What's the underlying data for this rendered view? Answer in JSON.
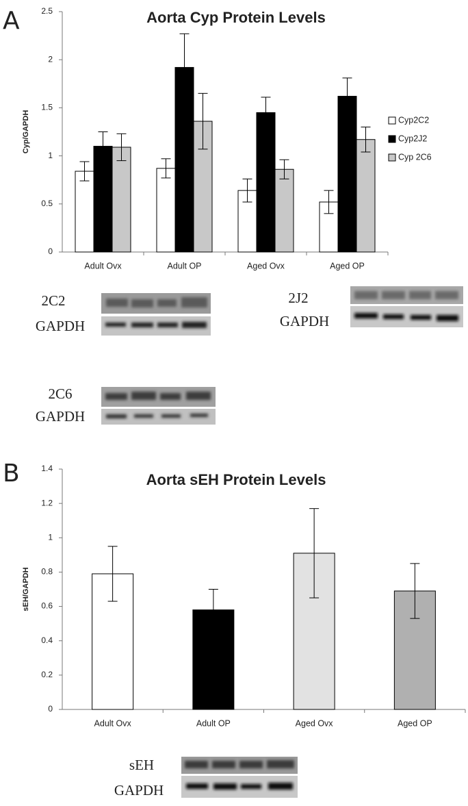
{
  "chart_data": [
    {
      "type": "bar",
      "panel_label": "A",
      "title": "Aorta Cyp Protein Levels",
      "y_label": "Cyp/GAPDH",
      "categories": [
        "Adult Ovx",
        "Adult OP",
        "Aged Ovx",
        "Aged OP"
      ],
      "series": [
        {
          "name": "Cyp2C2",
          "color": "#ffffff",
          "values": [
            0.84,
            0.87,
            0.64,
            0.52
          ],
          "errors": [
            0.1,
            0.1,
            0.12,
            0.12
          ]
        },
        {
          "name": "Cyp2J2",
          "color": "#000000",
          "values": [
            1.1,
            1.92,
            1.45,
            1.62
          ],
          "errors": [
            0.15,
            0.35,
            0.16,
            0.19
          ]
        },
        {
          "name": "Cyp 2C6",
          "color": "#c8c8c8",
          "values": [
            1.09,
            1.36,
            0.86,
            1.17
          ],
          "errors": [
            0.14,
            0.29,
            0.1,
            0.13
          ]
        }
      ],
      "ylim": [
        0,
        2.5
      ],
      "yticks": [
        0,
        0.5,
        1,
        1.5,
        2,
        2.5
      ],
      "grid": false,
      "legend": "right"
    },
    {
      "type": "bar",
      "panel_label": "B",
      "title": "Aorta sEH Protein Levels",
      "y_label": "sEH/GAPDH",
      "categories": [
        "Adult Ovx",
        "Adult OP",
        "Aged Ovx",
        "Aged OP"
      ],
      "values": [
        0.79,
        0.58,
        0.91,
        0.69
      ],
      "errors": [
        0.16,
        0.12,
        0.26,
        0.16
      ],
      "colors": [
        "#ffffff",
        "#000000",
        "#e2e2e2",
        "#b0b0b0"
      ],
      "ylim": [
        0,
        1.4
      ],
      "yticks": [
        0,
        0.2,
        0.4,
        0.6,
        0.8,
        1,
        1.2,
        1.4
      ],
      "grid": false
    }
  ],
  "blots": [
    {
      "labels": [
        "2C2",
        "GAPDH"
      ]
    },
    {
      "labels": [
        "2J2",
        "GAPDH"
      ]
    },
    {
      "labels": [
        "2C6",
        "GAPDH"
      ]
    },
    {
      "labels": [
        "sEH",
        "GAPDH"
      ]
    }
  ]
}
